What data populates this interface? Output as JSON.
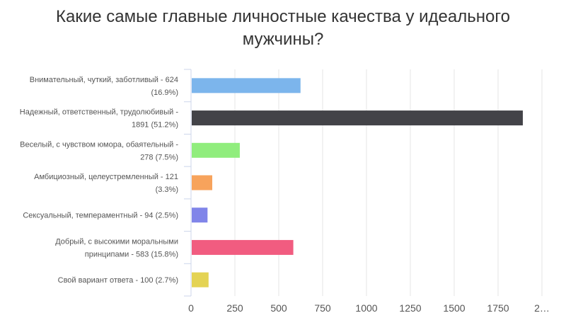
{
  "chart_data": {
    "type": "bar",
    "orientation": "horizontal",
    "title": "Какие самые главные личностные качества у идеального мужчины?",
    "categories": [
      [
        "Внимательный, чуткий, заботливый - 624",
        "(16.9%)"
      ],
      [
        "Надежный, ответственный, трудолюбивый -",
        "1891 (51.2%)"
      ],
      [
        "Веселый, с чувством юмора, обаятельный -",
        "278 (7.5%)"
      ],
      [
        "Амбициозный, целеустремленный - 121",
        "(3.3%)"
      ],
      [
        "Сексуальный, темпераментный - 94 (2.5%)"
      ],
      [
        "Добрый, с высокими моральными",
        "принципами - 583 (15.8%)"
      ],
      [
        "Свой вариант ответа - 100 (2.7%)"
      ]
    ],
    "values": [
      624,
      1891,
      278,
      121,
      94,
      583,
      100
    ],
    "colors": [
      "#7cb5ec",
      "#434348",
      "#90ed7d",
      "#f7a35c",
      "#8085e9",
      "#f15c80",
      "#e4d354"
    ],
    "xlim": [
      0,
      2000
    ],
    "tick_labels": [
      "0",
      "250",
      "500",
      "750",
      "1000",
      "1250",
      "1500",
      "1750",
      "2…"
    ],
    "grid": true
  }
}
